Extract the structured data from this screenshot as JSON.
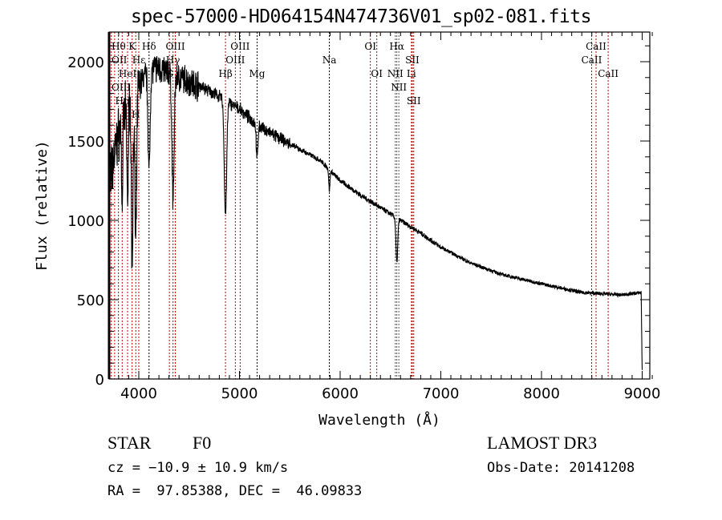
{
  "chart_data": {
    "type": "line",
    "title": "spec-57000-HD064154N474736V01_sp02-081.fits",
    "xlabel": "Wavelength (Å)",
    "ylabel": "Flux (relative)",
    "xlim": [
      3700,
      9100
    ],
    "ylim": [
      0,
      2190
    ],
    "xticks": [
      4000,
      5000,
      6000,
      7000,
      8000,
      9000
    ],
    "yticks": [
      0,
      500,
      1000,
      1500,
      2000
    ],
    "grid": false,
    "continuum": [
      [
        3700,
        1200
      ],
      [
        3800,
        1550
      ],
      [
        3900,
        1750
      ],
      [
        4000,
        1850
      ],
      [
        4100,
        1950
      ],
      [
        4200,
        1960
      ],
      [
        4400,
        1900
      ],
      [
        4600,
        1850
      ],
      [
        4800,
        1780
      ],
      [
        5000,
        1700
      ],
      [
        5200,
        1590
      ],
      [
        5500,
        1480
      ],
      [
        5800,
        1380
      ],
      [
        6000,
        1250
      ],
      [
        6200,
        1160
      ],
      [
        6500,
        1040
      ],
      [
        6800,
        920
      ],
      [
        7000,
        830
      ],
      [
        7300,
        730
      ],
      [
        7600,
        660
      ],
      [
        8000,
        600
      ],
      [
        8400,
        545
      ],
      [
        8800,
        530
      ],
      [
        8990,
        545
      ],
      [
        9000,
        60
      ]
    ],
    "absorption_lines": [
      {
        "center": 3934,
        "depth": 1050,
        "width": 8
      },
      {
        "center": 3970,
        "depth": 1000,
        "width": 9
      },
      {
        "center": 3889,
        "depth": 600,
        "width": 7
      },
      {
        "center": 3835,
        "depth": 500,
        "width": 6
      },
      {
        "center": 4102,
        "depth": 650,
        "width": 10
      },
      {
        "center": 4340,
        "depth": 780,
        "width": 11
      },
      {
        "center": 4861,
        "depth": 720,
        "width": 12
      },
      {
        "center": 5175,
        "depth": 220,
        "width": 8
      },
      {
        "center": 5893,
        "depth": 130,
        "width": 6
      },
      {
        "center": 6563,
        "depth": 280,
        "width": 9
      }
    ],
    "line_markers": [
      {
        "label": "Hθ",
        "wavelength": 3798,
        "row": 0,
        "color": "#c00000"
      },
      {
        "label": "K",
        "wavelength": 3934,
        "row": 0,
        "color": "#c00000"
      },
      {
        "label": "Hδ",
        "wavelength": 4102,
        "row": 0,
        "color": "#000000"
      },
      {
        "label": "OIII",
        "wavelength": 4363,
        "row": 0,
        "color": "#c00000"
      },
      {
        "label": "OIII",
        "wavelength": 5007,
        "row": 0,
        "color": "#c00000"
      },
      {
        "label": "OI",
        "wavelength": 6300,
        "row": 0,
        "color": "#c00000"
      },
      {
        "label": "Hα",
        "wavelength": 6563,
        "row": 0,
        "color": "#555555"
      },
      {
        "label": "SII",
        "wavelength": 6717,
        "row": 0,
        "color": "#c00000"
      },
      {
        "label": "CaII",
        "wavelength": 8542,
        "row": 0,
        "color": "#c00000"
      },
      {
        "label": "OII",
        "wavelength": 3727,
        "row": 1,
        "color": "#c00000"
      },
      {
        "label": "HeI",
        "wavelength": 3889,
        "row": 1,
        "color": "#c00000"
      },
      {
        "label": "Hε",
        "wavelength": 4000,
        "row": 1,
        "color": "#c00000"
      },
      {
        "label": "Hγ",
        "wavelength": 4340,
        "row": 1,
        "color": "#c00000"
      },
      {
        "label": "OIII",
        "wavelength": 4959,
        "row": 1,
        "color": "#c00000"
      },
      {
        "label": "Na",
        "wavelength": 5893,
        "row": 1,
        "color": "#000000"
      },
      {
        "label": "NII",
        "wavelength": 6548,
        "row": 1,
        "color": "#555555"
      },
      {
        "label": "Li",
        "wavelength": 6708,
        "row": 1,
        "color": "#c00000"
      },
      {
        "label": "CaII",
        "wavelength": 8498,
        "row": 1,
        "color": "#c00000"
      },
      {
        "label": "OIII",
        "wavelength": 3760,
        "row": 2,
        "color": "#c00000"
      },
      {
        "label": "Hη",
        "wavelength": 3835,
        "row": 2,
        "color": "#c00000"
      },
      {
        "label": "H",
        "wavelength": 3970,
        "row": 2,
        "color": "#c00000"
      },
      {
        "label": "G",
        "wavelength": 4304,
        "row": 2,
        "color": "#c00000"
      },
      {
        "label": "Hβ",
        "wavelength": 4861,
        "row": 2,
        "color": "#c00000"
      },
      {
        "label": "Mg",
        "wavelength": 5175,
        "row": 2,
        "color": "#000000"
      },
      {
        "label": "OI",
        "wavelength": 6364,
        "row": 2,
        "color": "#c00000"
      },
      {
        "label": "NII",
        "wavelength": 6583,
        "row": 2,
        "color": "#555555"
      },
      {
        "label": "SII",
        "wavelength": 6731,
        "row": 2,
        "color": "#c00000"
      },
      {
        "label": "CaII",
        "wavelength": 8662,
        "row": 2,
        "color": "#c00000"
      }
    ]
  },
  "info": {
    "class": "STAR",
    "subclass": "F0",
    "survey": "LAMOST DR3",
    "cz": "cz = −10.9 ± 10.9 km/s",
    "obs_date": "Obs-Date: 20141208",
    "coords": "RA =  97.85388, DEC =  46.09833"
  }
}
